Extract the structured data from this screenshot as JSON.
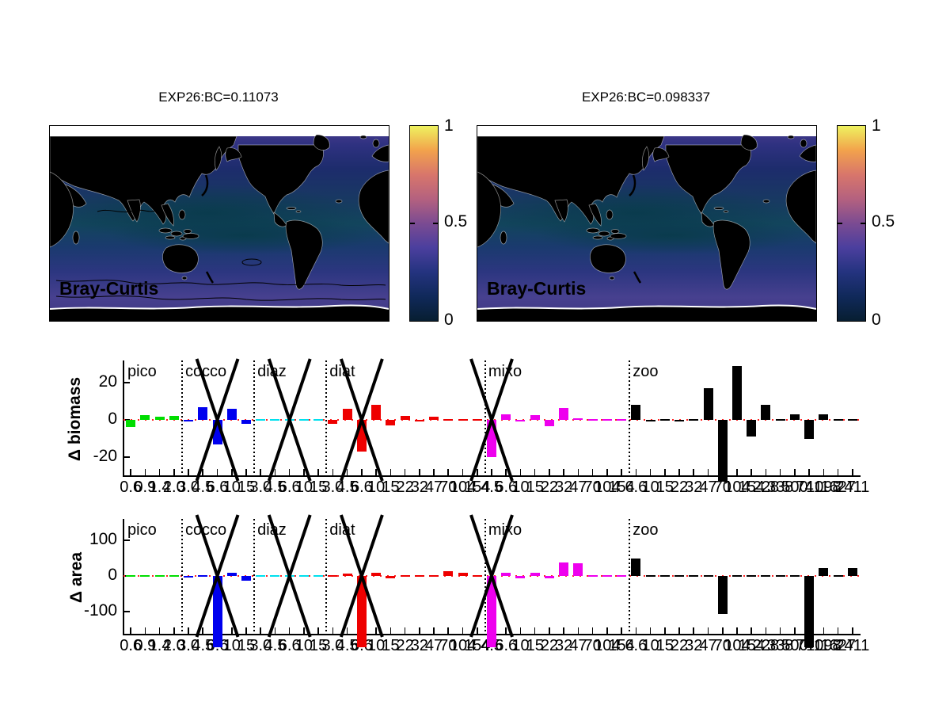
{
  "figure": {
    "background": "#ffffff"
  },
  "maps": [
    {
      "title": "EXP26:BC=0.11073",
      "corner_label": "Bray-Curtis",
      "has_contours": true
    },
    {
      "title": "EXP26:BC=0.098337",
      "corner_label": "Bray-Curtis",
      "has_contours": false
    }
  ],
  "colorbar": {
    "tick_labels": [
      "1",
      "0.5",
      "0"
    ],
    "gradient_bottom_to_top": [
      "#071e31",
      "#10295a",
      "#24337f",
      "#4b3f9e",
      "#7b4b92",
      "#b4617f",
      "#d8766b",
      "#f2a24c",
      "#eef25f"
    ]
  },
  "chart_data": [
    {
      "type": "bar",
      "title": "",
      "ylabel": "Δ biomass",
      "yticks": [
        20,
        0,
        -20
      ],
      "ylim": [
        -30,
        32
      ],
      "grid": false,
      "zero_line_color": "#ff2222",
      "x_markers_at_global_bar_index": [
        6,
        11,
        16,
        25
      ],
      "clipped_bars_global_index": [
        41
      ],
      "groups": [
        {
          "name": "pico",
          "color": "#00dd00",
          "sizes": [
            "0.6",
            "0.9",
            "1.4",
            "2.0"
          ],
          "values": [
            -4,
            2.5,
            1.5,
            2
          ]
        },
        {
          "name": "cocco",
          "color": "#0000ee",
          "sizes": [
            "3.0",
            "4.5",
            "6.6",
            "10",
            "15"
          ],
          "values": [
            -1,
            7,
            -13,
            6,
            -2
          ]
        },
        {
          "name": "diaz",
          "color": "#00e0ee",
          "sizes": [
            "3.0",
            "4.5",
            "6.6",
            "10",
            "15"
          ],
          "values": [
            0.3,
            0.3,
            0.3,
            0.3,
            0.7
          ]
        },
        {
          "name": "diat",
          "color": "#ee0000",
          "sizes": [
            "3.0",
            "4.5",
            "6.6",
            "10",
            "15",
            "22",
            "32",
            "47",
            "70",
            "104",
            "154"
          ],
          "values": [
            -2,
            6,
            -17,
            8,
            -3,
            2,
            -1,
            1.5,
            0.2,
            0.2,
            0.2
          ]
        },
        {
          "name": "mixo",
          "color": "#ee00ee",
          "sizes": [
            "4.5",
            "6.6",
            "10",
            "15",
            "22",
            "32",
            "47",
            "70",
            "104",
            "154"
          ],
          "values": [
            -20,
            3,
            -1,
            2.5,
            -3.5,
            6.5,
            1,
            0.2,
            0.2,
            0.2
          ]
        },
        {
          "name": "zoo",
          "color": "#000000",
          "sizes": [
            "6.6",
            "10",
            "15",
            "22",
            "32",
            "47",
            "70",
            "104",
            "154",
            "228",
            "338",
            "500",
            "741",
            "1098",
            "1627",
            "2411"
          ],
          "values": [
            8,
            -1,
            0.4,
            -1,
            -0.8,
            17,
            -33,
            29,
            -9,
            8,
            -0.7,
            3,
            -10,
            3,
            -0.8,
            -0.8
          ]
        }
      ]
    },
    {
      "type": "bar",
      "title": "",
      "ylabel": "Δ area",
      "yticks": [
        100,
        0,
        -100
      ],
      "ylim": [
        -162,
        160
      ],
      "grid": false,
      "zero_line_color": "#ff2222",
      "x_markers_at_global_bar_index": [
        6,
        11,
        16,
        25
      ],
      "clipped_bars_global_index": [
        6,
        16,
        25,
        47
      ],
      "groups": [
        {
          "name": "pico",
          "color": "#00dd00",
          "sizes": [
            "0.6",
            "0.9",
            "1.4",
            "2.0"
          ],
          "values": [
            0.5,
            0.5,
            3,
            0.5
          ]
        },
        {
          "name": "cocco",
          "color": "#0000ee",
          "sizes": [
            "3.0",
            "4.5",
            "6.6",
            "10",
            "15"
          ],
          "values": [
            -5,
            0.5,
            -200,
            9,
            -13
          ]
        },
        {
          "name": "diaz",
          "color": "#00e0ee",
          "sizes": [
            "3.0",
            "4.5",
            "6.6",
            "10",
            "15"
          ],
          "values": [
            -4,
            -3,
            0.5,
            0.5,
            -4
          ]
        },
        {
          "name": "diat",
          "color": "#ee0000",
          "sizes": [
            "3.0",
            "4.5",
            "6.6",
            "10",
            "15",
            "22",
            "32",
            "47",
            "70",
            "104",
            "154"
          ],
          "values": [
            -1,
            6,
            -200,
            9,
            -6,
            -4,
            -2,
            0.5,
            14,
            9,
            0.5
          ]
        },
        {
          "name": "mixo",
          "color": "#ee00ee",
          "sizes": [
            "4.5",
            "6.6",
            "10",
            "15",
            "22",
            "32",
            "47",
            "70",
            "104",
            "154"
          ],
          "values": [
            -200,
            9,
            -6,
            9,
            -7,
            38,
            35,
            4,
            0.5,
            0.5
          ]
        },
        {
          "name": "zoo",
          "color": "#000000",
          "sizes": [
            "6.6",
            "10",
            "15",
            "22",
            "32",
            "47",
            "70",
            "104",
            "154",
            "228",
            "338",
            "500",
            "741",
            "1098",
            "1627",
            "2411"
          ],
          "values": [
            48,
            0.5,
            0.5,
            4,
            0.5,
            0.5,
            -107,
            -4,
            0.5,
            3,
            -2,
            -2,
            -200,
            22,
            0.5,
            23
          ]
        }
      ]
    }
  ]
}
